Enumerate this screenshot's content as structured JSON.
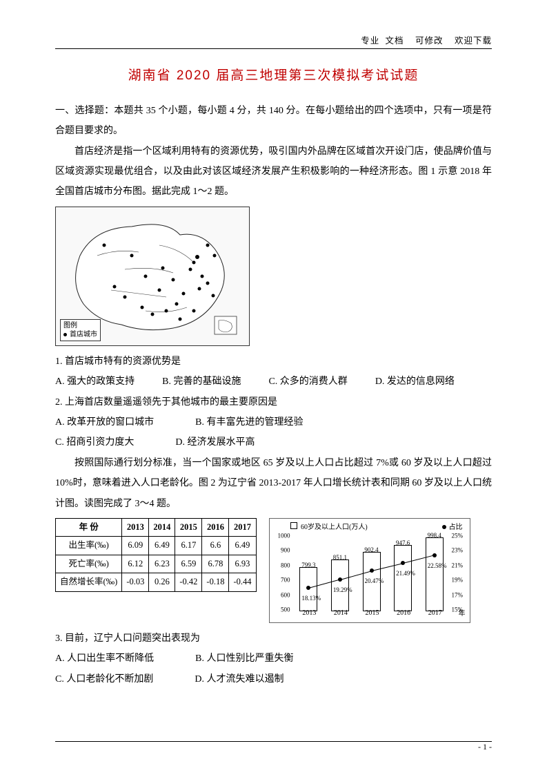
{
  "header": {
    "tags": [
      "专业",
      "文档",
      "可修改",
      "欢迎下载"
    ]
  },
  "title": "湖南省 2020 届高三地理第三次模拟考试试题",
  "section1_label": "一、选择题：本题共 35 个小题，每小题 4 分，共 140 分。在每小题给出的四个选项中，只有一项是符合题目要求的。",
  "intro1": "首店经济是指一个区域利用特有的资源优势，吸引国内外品牌在区域首次开设门店，使品牌价值与区域资源实现最优组合，以及由此对该区域经济发展产生积极影响的一种经济形态。图 1 示意 2018 年全国首店城市分布图。据此完成 1～2 题。",
  "map": {
    "legend_title": "图例",
    "legend_item": "首店城市"
  },
  "q1": {
    "stem": "1. 首店城市特有的资源优势是",
    "opts": [
      "A. 强大的政策支持",
      "B. 完善的基础设施",
      "C. 众多的消费人群",
      "D. 发达的信息网络"
    ]
  },
  "q2": {
    "stem": "2. 上海首店数量遥遥领先于其他城市的最主要原因是",
    "opts": [
      "A. 改革开放的窗口城市",
      "B. 有丰富先进的管理经验",
      "C. 招商引资力度大",
      "D. 经济发展水平高"
    ]
  },
  "intro2": "按照国际通行划分标准，当一个国家或地区 65 岁及以上人口占比超过 7%或 60 岁及以上人口超过 10%时，意味着进入人口老龄化。图 2 为辽宁省 2013-2017 年人口增长统计表和同期 60 岁及以上人口统计图。读图完成了 3～4 题。",
  "table": {
    "header": [
      "年 份",
      "2013",
      "2014",
      "2015",
      "2016",
      "2017"
    ],
    "rows": [
      [
        "出生率(‰)",
        "6.09",
        "6.49",
        "6.17",
        "6.6",
        "6.49"
      ],
      [
        "死亡率(‰)",
        "6.12",
        "6.23",
        "6.59",
        "6.78",
        "6.93"
      ],
      [
        "自然增长率(‰)",
        "-0.03",
        "0.26",
        "-0.42",
        "-0.18",
        "-0.44"
      ]
    ]
  },
  "chart": {
    "legend_box_label": "60岁及以上人口(万人)",
    "legend_line_label": "占比",
    "years": [
      "2013",
      "2014",
      "2015",
      "2016",
      "2017"
    ],
    "x_unit": "年",
    "bars": [
      799.3,
      851.1,
      902.4,
      947.6,
      998.4
    ],
    "line_pct": [
      18.13,
      19.29,
      20.47,
      21.49,
      22.58
    ],
    "bar_colors": [
      "#ffffff",
      "#ffffff",
      "#ffffff",
      "#ffffff",
      "#ffffff"
    ],
    "bar_border": "#000000",
    "background_color": "#ffffff",
    "yticks": [
      500,
      600,
      700,
      800,
      900,
      1000
    ],
    "ylim": [
      500,
      1050
    ],
    "y2ticks": [
      15,
      17,
      19,
      21,
      23,
      25
    ],
    "y2lim": [
      15,
      26
    ],
    "y2_suffix": "%"
  },
  "q3": {
    "stem": "3. 目前，辽宁人口问题突出表现为",
    "opts": [
      "A. 人口出生率不断降低",
      "B. 人口性别比严重失衡",
      "C. 人口老龄化不断加剧",
      "D. 人才流失难以遏制"
    ]
  },
  "footer": {
    "page": "- 1 -"
  }
}
